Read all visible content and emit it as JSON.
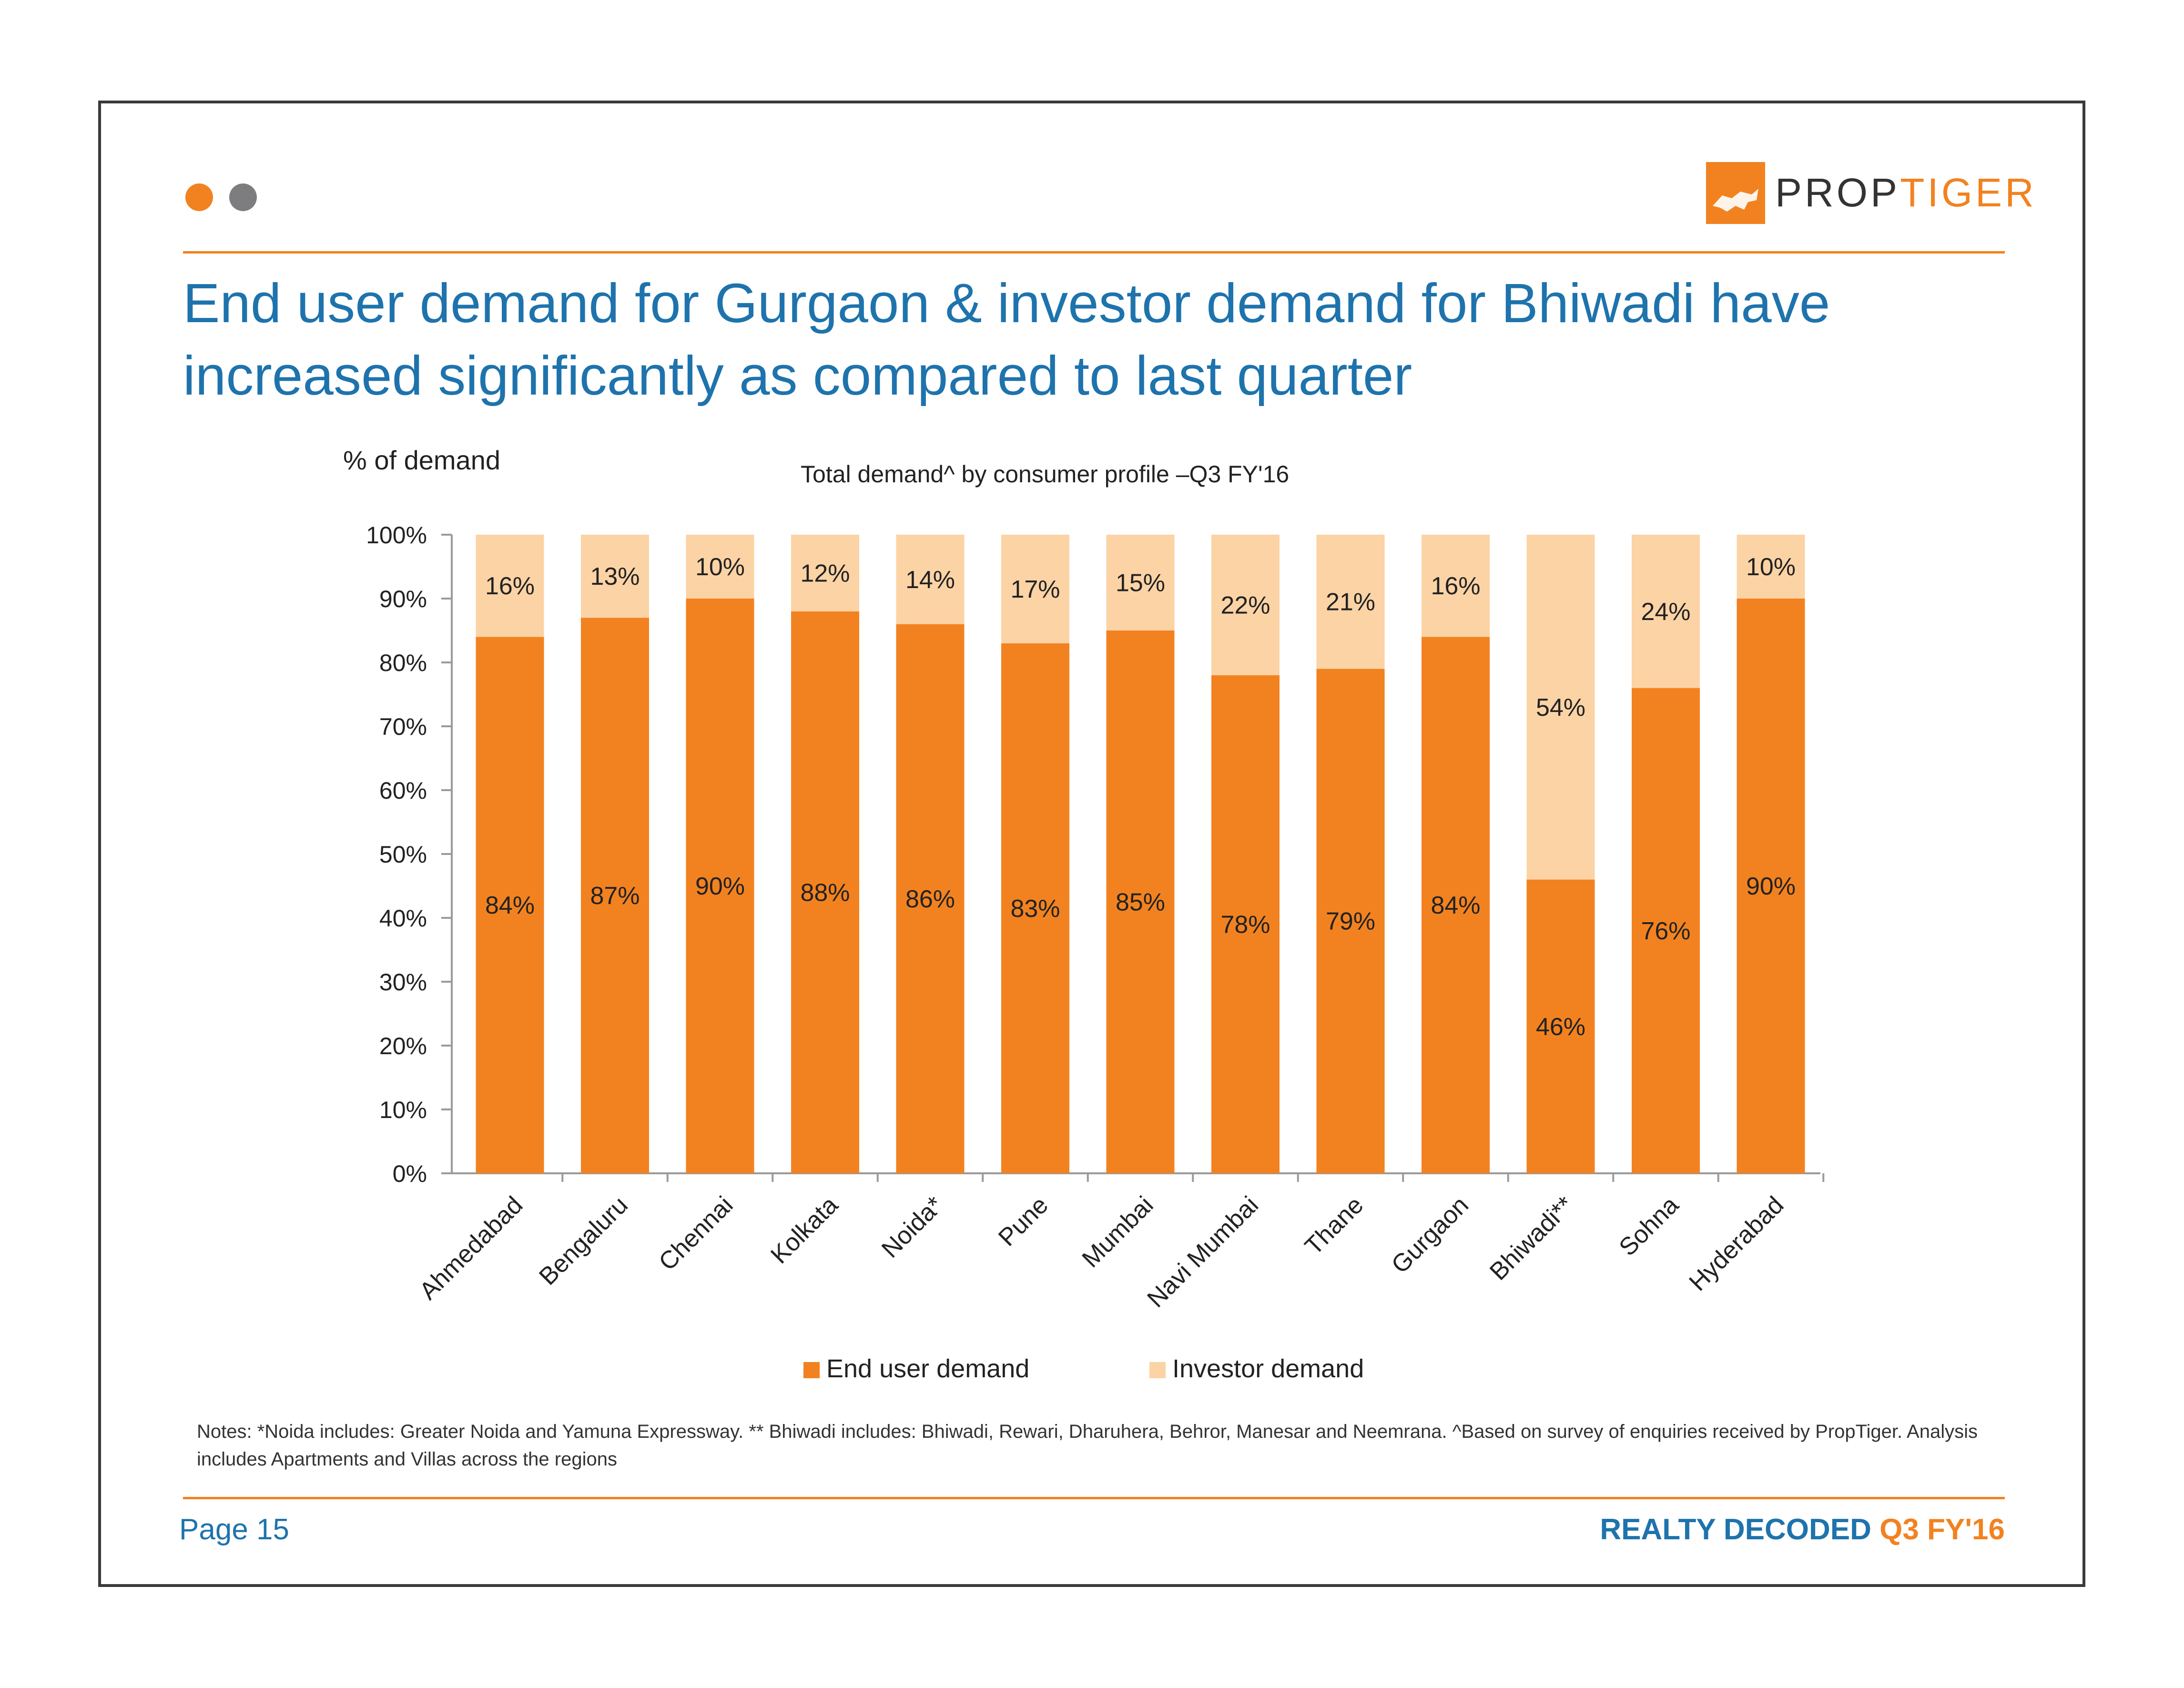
{
  "brand": {
    "logo_part1": "PROP",
    "logo_part2": "TIGER"
  },
  "title": "End user demand for Gurgaon & investor demand for Bhiwadi have increased significantly as compared to last quarter",
  "notes": "Notes: *Noida includes: Greater Noida and Yamuna Expressway. ** Bhiwadi includes: Bhiwadi, Rewari, Dharuhera, Behror, Manesar and Neemrana. ^Based on survey of enquiries received by PropTiger. Analysis includes Apartments and Villas across the regions",
  "footer": {
    "page": "Page 15",
    "brand": "REALTY DECODED",
    "period": "Q3 FY'16"
  },
  "colors": {
    "accent": "#f28220",
    "investor": "#fcd3a5",
    "title": "#1e73ad",
    "dot_grey": "#7d7d7f"
  },
  "chart_data": {
    "type": "bar",
    "stacked": true,
    "title": "Total demand^ by consumer profile –Q3 FY'16",
    "ylabel": "% of demand",
    "xlabel": "",
    "ylim": [
      0,
      100
    ],
    "yticks": [
      "0%",
      "10%",
      "20%",
      "30%",
      "40%",
      "50%",
      "60%",
      "70%",
      "80%",
      "90%",
      "100%"
    ],
    "categories": [
      "Ahmedabad",
      "Bengaluru",
      "Chennai",
      "Kolkata",
      "Noida*",
      "Pune",
      "Mumbai",
      "Navi Mumbai",
      "Thane",
      "Gurgaon",
      "Bhiwadi**",
      "Sohna",
      "Hyderabad"
    ],
    "series": [
      {
        "name": "End user demand",
        "color": "#f28220",
        "values": [
          84,
          87,
          90,
          88,
          86,
          83,
          85,
          78,
          79,
          84,
          46,
          76,
          90
        ],
        "labels": [
          "84%",
          "87%",
          "90%",
          "88%",
          "86%",
          "83%",
          "85%",
          "78%",
          "79%",
          "84%",
          "46%",
          "76%",
          "90%"
        ]
      },
      {
        "name": "Investor demand",
        "color": "#fcd3a5",
        "values": [
          16,
          13,
          10,
          12,
          14,
          17,
          15,
          22,
          21,
          16,
          54,
          24,
          10
        ],
        "labels": [
          "16%",
          "13%",
          "10%",
          "12%",
          "14%",
          "17%",
          "15%",
          "22%",
          "21%",
          "16%",
          "54%",
          "24%",
          "10%"
        ]
      }
    ],
    "legend": "bottom",
    "grid": false
  }
}
